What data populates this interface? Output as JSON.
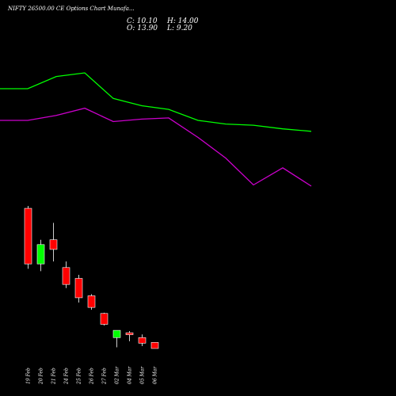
{
  "chart_data": {
    "type": "candlestick",
    "title": "NIFTY 26500.00 CE Options Chart Munafa...",
    "ohlc": {
      "close_label": "C: 10.10",
      "high_label": "H: 14.00",
      "open_label": "O: 13.90",
      "low_label": "L: 9.20"
    },
    "categories": [
      "19 Feb",
      "20 Feb",
      "21 Feb",
      "24 Feb",
      "25 Feb",
      "26 Feb",
      "27 Feb",
      "02 Mar",
      "04 Mar",
      "05 Mar",
      "06 Mar"
    ],
    "candles": [
      {
        "open": 55.0,
        "high": 56.0,
        "low": 30.0,
        "close": 32.0
      },
      {
        "open": 32.0,
        "high": 42.0,
        "low": 29.0,
        "close": 40.0
      },
      {
        "open": 42.0,
        "high": 49.0,
        "low": 33.0,
        "close": 38.0
      },
      {
        "open": 30.5,
        "high": 33.0,
        "low": 22.0,
        "close": 23.5
      },
      {
        "open": 26.0,
        "high": 27.5,
        "low": 16.0,
        "close": 18.0
      },
      {
        "open": 18.8,
        "high": 19.5,
        "low": 13.0,
        "close": 14.0
      },
      {
        "open": 11.5,
        "high": 11.8,
        "low": 6.5,
        "close": 7.0
      },
      {
        "open": 1.5,
        "high": 4.5,
        "low": -2.5,
        "close": 4.5
      },
      {
        "open": 3.5,
        "high": 4.2,
        "low": 0.0,
        "close": 2.7
      },
      {
        "open": 1.5,
        "high": 2.8,
        "low": -2.0,
        "close": -0.8
      },
      {
        "open": -0.5,
        "high": -0.5,
        "low": -3.0,
        "close": -3.0
      }
    ],
    "moving_averages": [
      {
        "color": "#00ff00",
        "points": [
          85,
          85,
          80,
          78.5,
          89,
          92,
          93.5,
          98,
          99.5,
          100,
          101.5,
          102.5
        ]
      },
      {
        "color": "#cc00cc",
        "points": [
          98,
          98,
          96,
          93,
          98.5,
          97.5,
          97,
          105,
          113.5,
          124.5,
          117.5,
          125
        ]
      }
    ],
    "colors": {
      "up": "#00ff00",
      "down": "#ff0000",
      "background": "#000000",
      "text": "#ffffff"
    }
  }
}
